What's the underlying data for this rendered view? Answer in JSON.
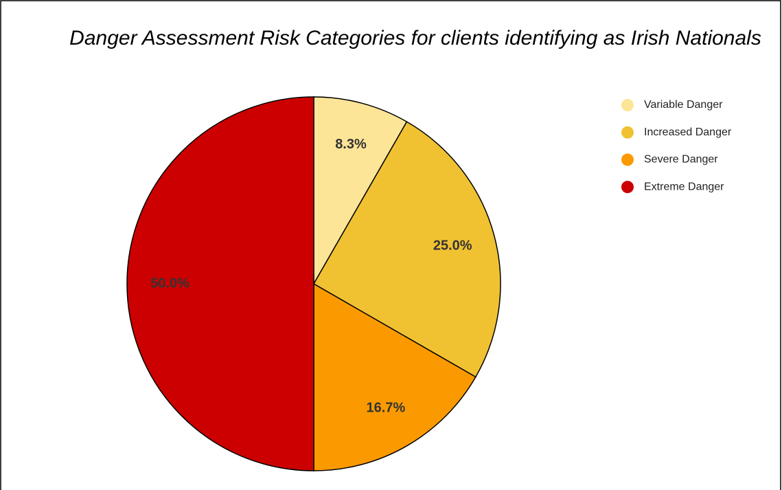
{
  "chart_data": {
    "type": "pie",
    "title": "Danger Assessment Risk Categories for clients identifying as Irish Nationals",
    "categories": [
      "Variable Danger",
      "Increased Danger",
      "Severe Danger",
      "Extreme Danger"
    ],
    "values": [
      8.3,
      25.0,
      16.7,
      50.0
    ],
    "value_labels": [
      "8.3%",
      "25.0%",
      "16.7%",
      "50.0%"
    ],
    "colors": [
      "#fde597",
      "#f0c232",
      "#fb9a00",
      "#cc0000"
    ],
    "legend": "right"
  }
}
